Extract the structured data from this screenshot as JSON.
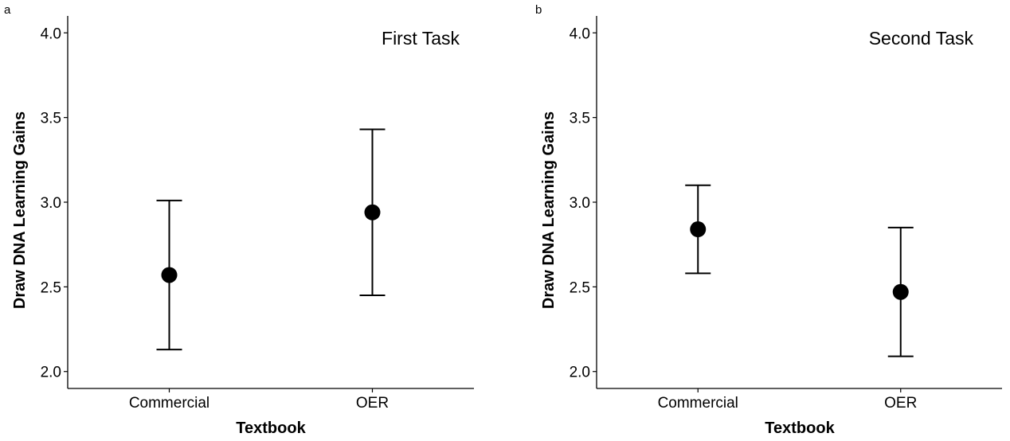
{
  "chart_data": [
    {
      "type": "scatter",
      "panel_label": "a",
      "title": "First Task",
      "xlabel": "Textbook",
      "ylabel": "Draw DNA Learning Gains",
      "categories": [
        "Commercial",
        "OER"
      ],
      "y_ticks": [
        "2.0",
        "2.5",
        "3.0",
        "3.5",
        "4.0"
      ],
      "ylim": [
        1.9,
        4.1
      ],
      "points": [
        {
          "category": "Commercial",
          "mean": 2.57,
          "lower": 2.13,
          "upper": 3.01
        },
        {
          "category": "OER",
          "mean": 2.94,
          "lower": 2.45,
          "upper": 3.43
        }
      ],
      "grid": false,
      "point_color": "#000000"
    },
    {
      "type": "scatter",
      "panel_label": "b",
      "title": "Second Task",
      "xlabel": "Textbook",
      "ylabel": "Draw DNA Learning Gains",
      "categories": [
        "Commercial",
        "OER"
      ],
      "y_ticks": [
        "2.0",
        "2.5",
        "3.0",
        "3.5",
        "4.0"
      ],
      "ylim": [
        1.9,
        4.1
      ],
      "points": [
        {
          "category": "Commercial",
          "mean": 2.84,
          "lower": 2.58,
          "upper": 3.1
        },
        {
          "category": "OER",
          "mean": 2.47,
          "lower": 2.09,
          "upper": 2.85
        }
      ],
      "grid": false,
      "point_color": "#000000"
    }
  ]
}
